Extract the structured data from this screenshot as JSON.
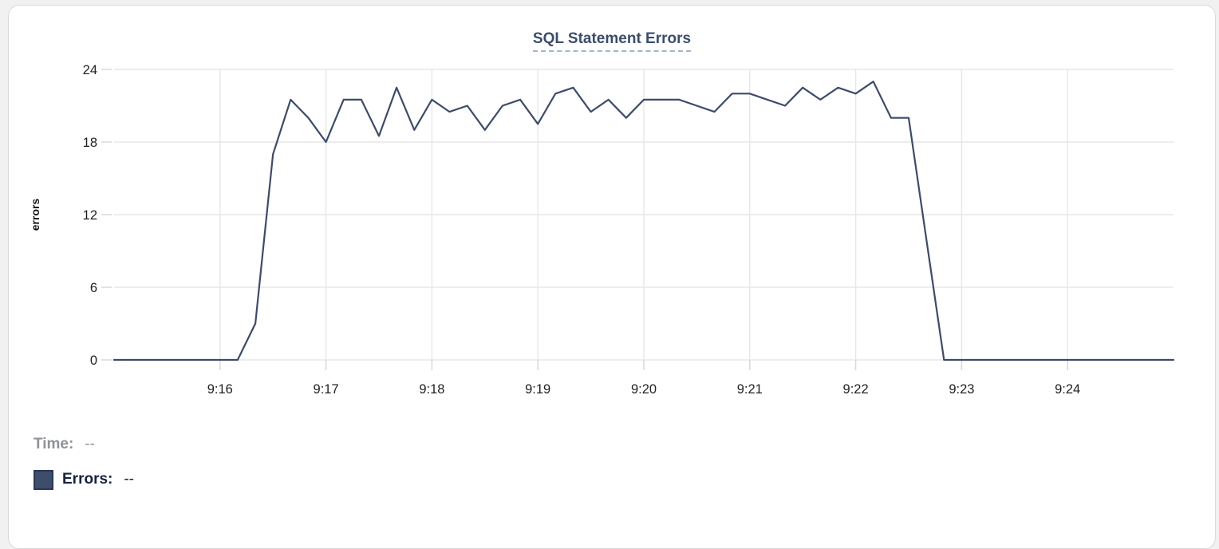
{
  "chart_data": {
    "type": "line",
    "title": "SQL Statement Errors",
    "xlabel": "",
    "ylabel": "errors",
    "ylim": [
      0,
      24
    ],
    "y_ticks": [
      0,
      6,
      12,
      18,
      24
    ],
    "x_tick_labels": [
      "9:16",
      "9:17",
      "9:18",
      "9:19",
      "9:20",
      "9:21",
      "9:22",
      "9:23",
      "9:24"
    ],
    "x_range": [
      "9:15:00",
      "9:25:00"
    ],
    "grid": true,
    "legend_position": "bottom-left",
    "series": [
      {
        "name": "Errors",
        "color": "#3c4b6c",
        "x": [
          "9:15:00",
          "9:15:10",
          "9:15:20",
          "9:15:30",
          "9:15:40",
          "9:15:50",
          "9:16:00",
          "9:16:10",
          "9:16:20",
          "9:16:30",
          "9:16:40",
          "9:16:50",
          "9:17:00",
          "9:17:10",
          "9:17:20",
          "9:17:30",
          "9:17:40",
          "9:17:50",
          "9:18:00",
          "9:18:10",
          "9:18:20",
          "9:18:30",
          "9:18:40",
          "9:18:50",
          "9:19:00",
          "9:19:10",
          "9:19:20",
          "9:19:30",
          "9:19:40",
          "9:19:50",
          "9:20:00",
          "9:20:10",
          "9:20:20",
          "9:20:30",
          "9:20:40",
          "9:20:50",
          "9:21:00",
          "9:21:10",
          "9:21:20",
          "9:21:30",
          "9:21:40",
          "9:21:50",
          "9:22:00",
          "9:22:10",
          "9:22:20",
          "9:22:30",
          "9:22:40",
          "9:22:50",
          "9:23:00",
          "9:23:10",
          "9:23:20",
          "9:23:30",
          "9:23:40",
          "9:23:50",
          "9:24:00",
          "9:24:10",
          "9:24:20",
          "9:24:30",
          "9:24:40",
          "9:24:50",
          "9:25:00"
        ],
        "values": [
          0,
          0,
          0,
          0,
          0,
          0,
          0,
          0,
          3,
          17,
          21.5,
          20,
          18,
          21.5,
          21.5,
          18.5,
          22.5,
          19,
          21.5,
          20.5,
          21,
          19,
          21,
          21.5,
          19.5,
          22,
          22.5,
          20.5,
          21.5,
          20,
          21.5,
          21.5,
          21.5,
          21,
          20.5,
          22,
          22,
          21.5,
          21,
          22.5,
          21.5,
          22.5,
          22,
          23,
          20,
          20,
          10,
          0,
          0,
          0,
          0,
          0,
          0,
          0,
          0,
          0,
          0,
          0,
          0,
          0,
          0
        ]
      }
    ]
  },
  "tooltip_legend": {
    "time_label": "Time:",
    "time_value": "--",
    "errors_label": "Errors:",
    "errors_value": "--"
  },
  "colors": {
    "line": "#3c4b6c",
    "title": "#3a4d6e",
    "title_underline": "#a8b4cd",
    "grid": "#e7e7e7",
    "tick": "#d8d8d8",
    "axis_text": "#1f1f1f",
    "ylabel_text": "#111111",
    "time_legend_text": "#8f9297",
    "errors_legend_text": "#17223f",
    "swatch_fill": "#3e4d6b",
    "swatch_border": "#2a3654",
    "card_border": "#d9d9d9",
    "page_bg": "#f1f1f1"
  }
}
